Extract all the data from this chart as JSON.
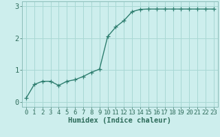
{
  "x": [
    0,
    1,
    2,
    3,
    4,
    5,
    6,
    7,
    8,
    9,
    10,
    11,
    12,
    13,
    14,
    15,
    16,
    17,
    18,
    19,
    20,
    21,
    22,
    23
  ],
  "y": [
    0.12,
    0.55,
    0.65,
    0.65,
    0.52,
    0.65,
    0.7,
    0.8,
    0.93,
    1.03,
    2.05,
    2.35,
    2.55,
    2.83,
    2.9,
    2.91,
    2.91,
    2.91,
    2.91,
    2.91,
    2.91,
    2.91,
    2.91,
    2.91
  ],
  "line_color": "#2d7d6e",
  "marker": "+",
  "markersize": 4,
  "linewidth": 1.0,
  "background_color": "#cdeeed",
  "grid_color": "#a8d8d4",
  "xlabel": "Humidex (Indice chaleur)",
  "xlim": [
    -0.5,
    23.5
  ],
  "ylim": [
    -0.15,
    3.15
  ],
  "yticks": [
    0,
    1,
    2,
    3
  ],
  "xticks": [
    0,
    1,
    2,
    3,
    4,
    5,
    6,
    7,
    8,
    9,
    10,
    11,
    12,
    13,
    14,
    15,
    16,
    17,
    18,
    19,
    20,
    21,
    22,
    23
  ],
  "tick_color": "#2d6b5a",
  "label_color": "#2d6b5a",
  "tick_fontsize": 6.5,
  "xlabel_fontsize": 7.5,
  "spine_color": "#8abcb8"
}
